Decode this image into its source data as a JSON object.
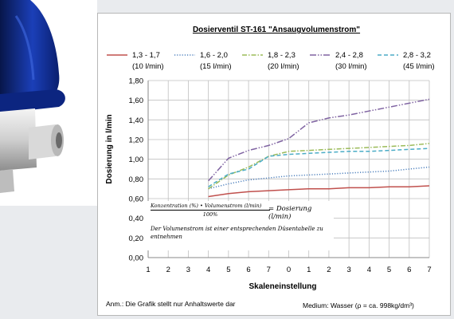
{
  "chart_data": {
    "type": "line",
    "title": "Dosierventil ST-161 \"Ansaugvolumenstrom\"",
    "xlabel": "Skaleneinstellung",
    "ylabel": "Dosierung in l/min",
    "x_ticks": [
      "1",
      "2",
      "3",
      "4",
      "5",
      "6",
      "7",
      "0",
      "1",
      "2",
      "3",
      "4",
      "5",
      "6",
      "7"
    ],
    "ylim": [
      0,
      1.8
    ],
    "y_ticks": [
      "0,00",
      "0,20",
      "0,40",
      "0,60",
      "0,80",
      "1,00",
      "1,20",
      "1,40",
      "1,60",
      "1,80"
    ],
    "grid": true,
    "legend_position": "top",
    "series": [
      {
        "name": "1,3 - 1,7",
        "sub": "(10 l/min)",
        "color": "#c0504d",
        "dash": "",
        "x": [
          4,
          5,
          6,
          7,
          8,
          9,
          10,
          11,
          12,
          13,
          14,
          15
        ],
        "y": [
          0.62,
          0.65,
          0.67,
          0.68,
          0.69,
          0.7,
          0.7,
          0.71,
          0.71,
          0.72,
          0.72,
          0.73
        ]
      },
      {
        "name": "1,6 - 2,0",
        "sub": "(15 l/min)",
        "color": "#4f81bd",
        "dash": "1.2,2",
        "x": [
          4,
          5,
          6,
          7,
          8,
          9,
          10,
          11,
          12,
          13,
          14,
          15
        ],
        "y": [
          0.7,
          0.75,
          0.79,
          0.81,
          0.83,
          0.84,
          0.85,
          0.86,
          0.87,
          0.88,
          0.9,
          0.92
        ]
      },
      {
        "name": "1,8 - 2,3",
        "sub": "(20 l/min)",
        "color": "#9bbb59",
        "dash": "6,2,1.5,2",
        "x": [
          4,
          5,
          6,
          7,
          8,
          9,
          10,
          11,
          12,
          13,
          14,
          15
        ],
        "y": [
          0.7,
          0.84,
          0.92,
          1.03,
          1.08,
          1.09,
          1.1,
          1.11,
          1.12,
          1.13,
          1.14,
          1.16
        ]
      },
      {
        "name": "2,4 - 2,8",
        "sub": "(30 l/min)",
        "color": "#8064a2",
        "dash": "8,2,1.5,2,1.5,2",
        "x": [
          4,
          5,
          6,
          7,
          8,
          9,
          10,
          11,
          12,
          13,
          14,
          15
        ],
        "y": [
          0.78,
          1.01,
          1.09,
          1.14,
          1.21,
          1.37,
          1.42,
          1.45,
          1.49,
          1.53,
          1.57,
          1.61
        ]
      },
      {
        "name": "2,8 - 3,2",
        "sub": "(45 l/min)",
        "color": "#4bacc6",
        "dash": "5,3",
        "x": [
          4,
          5,
          6,
          7,
          8,
          9,
          10,
          11,
          12,
          13,
          14,
          15
        ],
        "y": [
          0.72,
          0.85,
          0.9,
          1.03,
          1.05,
          1.06,
          1.07,
          1.08,
          1.08,
          1.09,
          1.1,
          1.11
        ]
      }
    ]
  },
  "formula": {
    "numerator": "Konzentration (%) • Volumenstrom (l/min)",
    "denominator": "100%",
    "result": "= Dosierung (l/min)",
    "note": "Der Volumenstrom ist einer entsprechenden Düsentabelle zu entnehmen"
  },
  "footer": {
    "left": "Anm.: Die Grafik stellt nur Anhaltswerte dar",
    "right": "Medium: Wasser (ρ = ca. 998kg/dm³)"
  }
}
